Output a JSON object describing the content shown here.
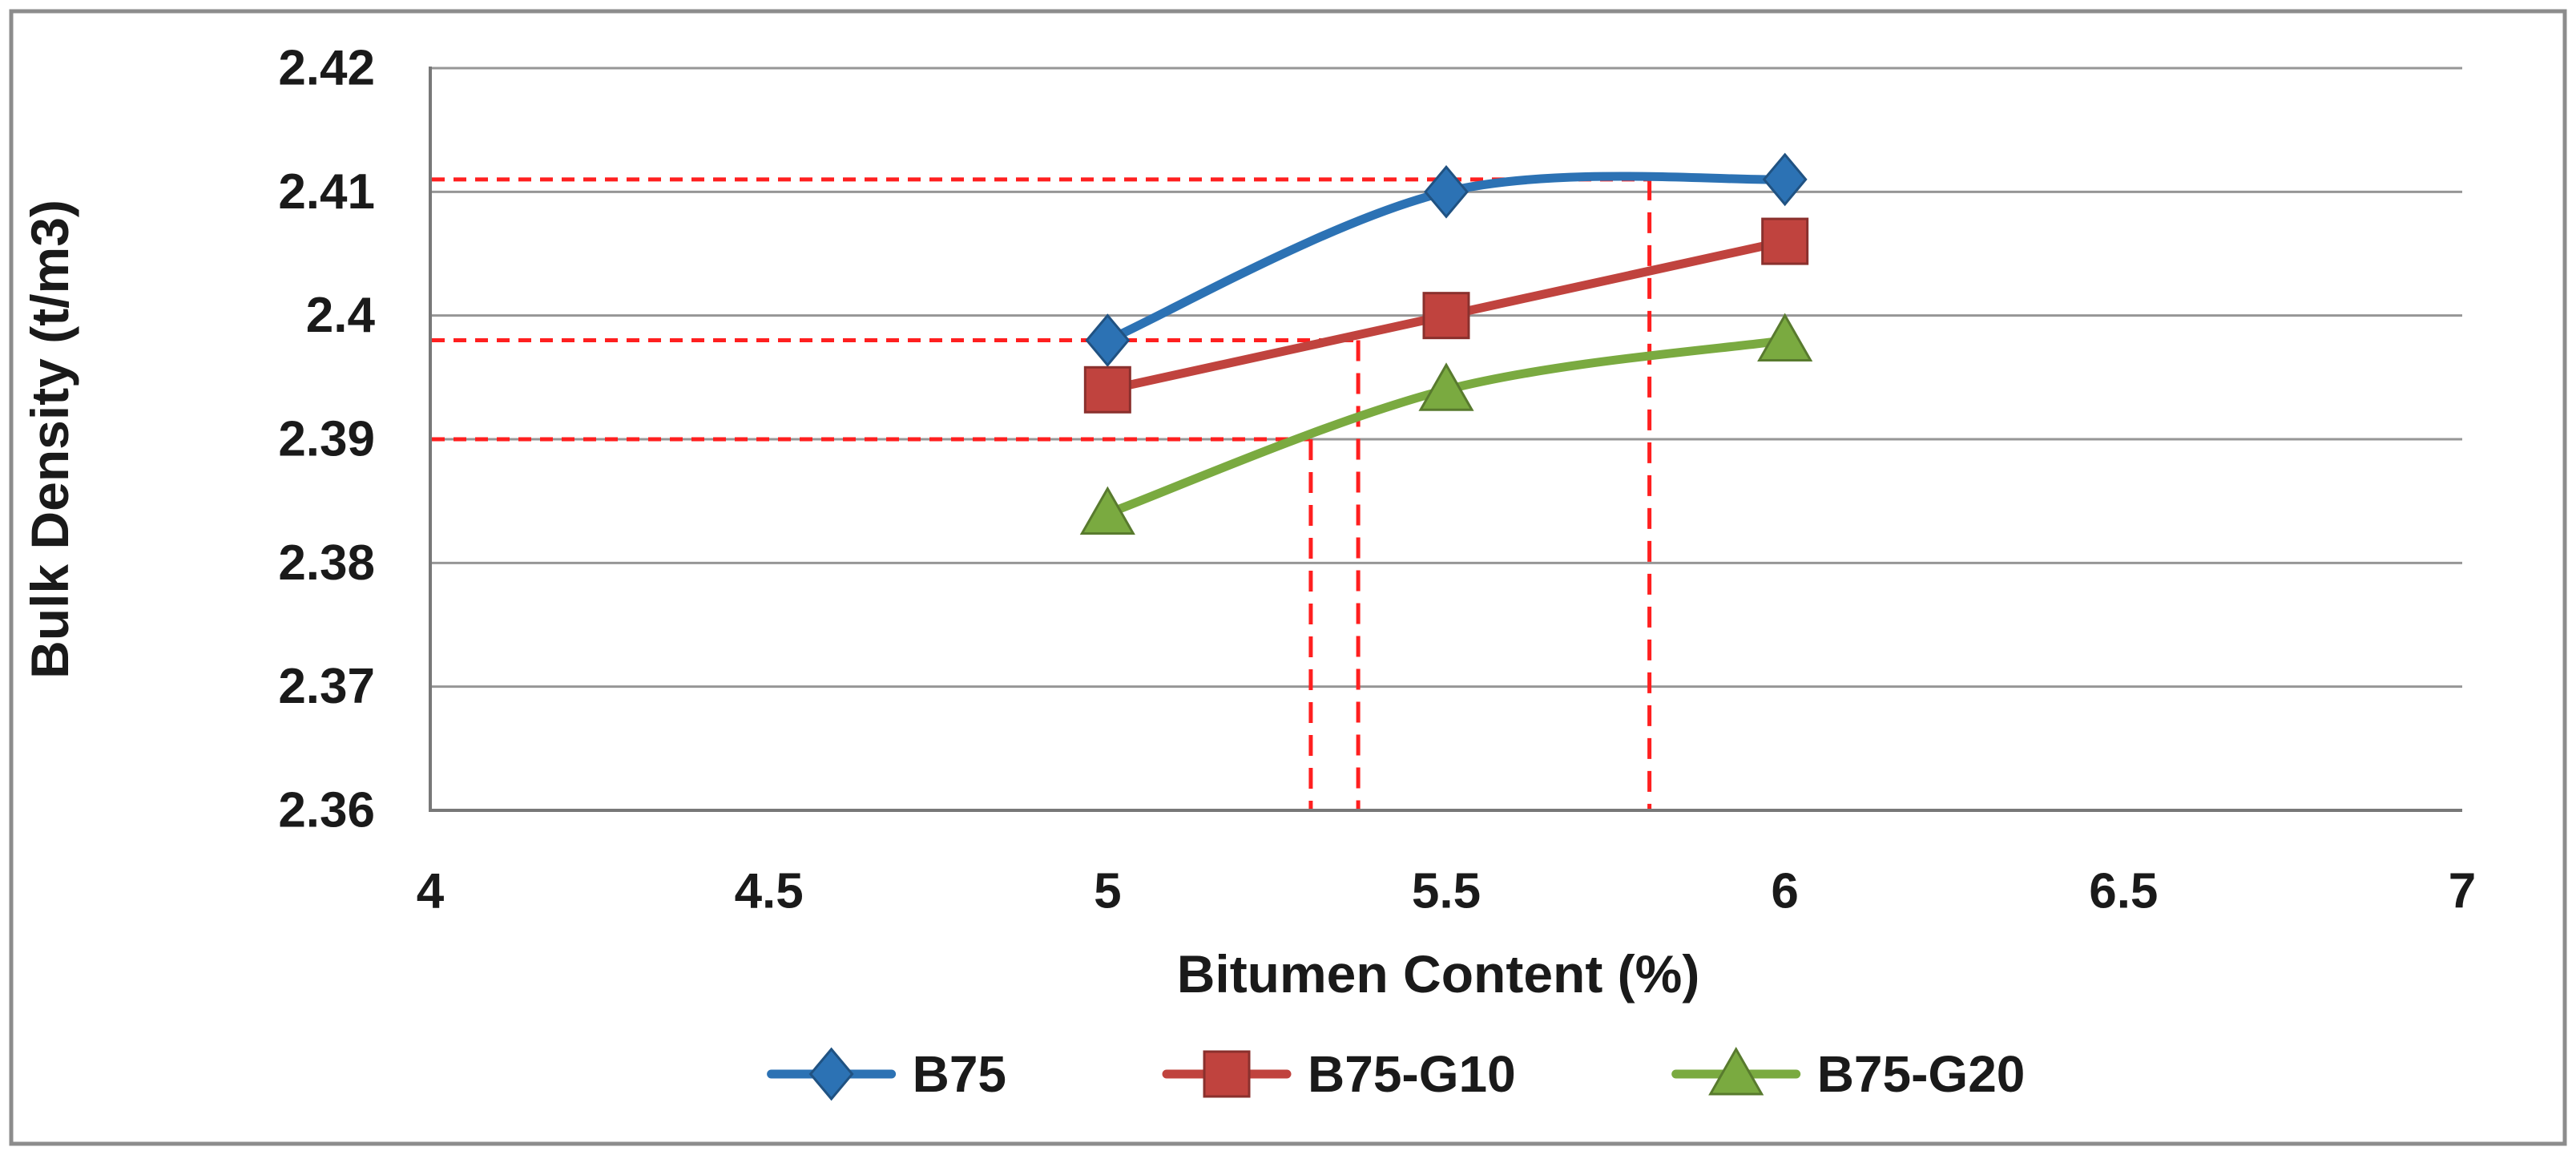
{
  "chart_data": {
    "type": "line",
    "title": "",
    "xlabel": "Bitumen Content (%)",
    "ylabel": "Bulk Density (t/m3)",
    "xlim": [
      4,
      7
    ],
    "ylim": [
      2.36,
      2.42
    ],
    "xticks": [
      "4",
      "4.5",
      "5",
      "5.5",
      "6",
      "6.5",
      "7"
    ],
    "xtick_values": [
      4,
      4.5,
      5,
      5.5,
      6,
      6.5,
      7
    ],
    "yticks": [
      "2.36",
      "2.37",
      "2.38",
      "2.39",
      "2.4",
      "2.41",
      "2.42"
    ],
    "ytick_values": [
      2.36,
      2.37,
      2.38,
      2.39,
      2.4,
      2.41,
      2.42
    ],
    "grid": "horizontal",
    "line_style": "smooth",
    "legend_position": "bottom-center",
    "series": [
      {
        "name": "B75",
        "marker": "diamond",
        "color": "#2C72B4",
        "x": [
          5,
          5.5,
          6
        ],
        "y": [
          2.398,
          2.41,
          2.411
        ]
      },
      {
        "name": "B75-G10",
        "marker": "square",
        "color": "#C0433E",
        "x": [
          5,
          5.5,
          6
        ],
        "y": [
          2.394,
          2.4,
          2.406
        ]
      },
      {
        "name": "B75-G20",
        "marker": "triangle",
        "color": "#7AAA40",
        "x": [
          5,
          5.5,
          6
        ],
        "y": [
          2.384,
          2.394,
          2.398
        ]
      }
    ],
    "optimum_guides": {
      "color": "#FF1F1F",
      "line_style": "dashed",
      "points": [
        {
          "series": "B75",
          "x": 5.8,
          "y": 2.411
        },
        {
          "series": "B75-G10",
          "x": 5.37,
          "y": 2.398
        },
        {
          "series": "B75-G20",
          "x": 5.3,
          "y": 2.39
        }
      ]
    },
    "colors": {
      "axis_text": "#1A1A1A",
      "gridline": "#969696",
      "axis_line": "#787878",
      "frame_border": "#8C8C8C",
      "background": "#FFFFFF"
    }
  }
}
